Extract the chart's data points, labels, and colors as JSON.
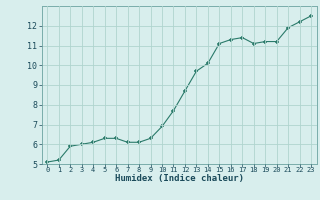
{
  "x": [
    0,
    1,
    2,
    3,
    4,
    5,
    6,
    7,
    8,
    9,
    10,
    11,
    12,
    13,
    14,
    15,
    16,
    17,
    18,
    19,
    20,
    21,
    22,
    23
  ],
  "y": [
    5.1,
    5.2,
    5.9,
    6.0,
    6.1,
    6.3,
    6.3,
    6.1,
    6.1,
    6.3,
    6.9,
    7.7,
    8.7,
    9.7,
    10.1,
    11.1,
    11.3,
    11.4,
    11.1,
    11.2,
    11.2,
    11.9,
    12.2,
    12.5
  ],
  "xlabel": "Humidex (Indice chaleur)",
  "ylim": [
    5,
    13
  ],
  "xlim": [
    -0.5,
    23.5
  ],
  "yticks": [
    5,
    6,
    7,
    8,
    9,
    10,
    11,
    12
  ],
  "xticks": [
    0,
    1,
    2,
    3,
    4,
    5,
    6,
    7,
    8,
    9,
    10,
    11,
    12,
    13,
    14,
    15,
    16,
    17,
    18,
    19,
    20,
    21,
    22,
    23
  ],
  "line_color": "#2a7a6a",
  "marker": "+",
  "bg_color": "#d8eeed",
  "grid_color": "#b0d4cf",
  "axis_bg": "#d8eeed",
  "label_color": "#1a4a5a",
  "tick_label_color": "#1a4a5a",
  "spine_color": "#7aacaa"
}
